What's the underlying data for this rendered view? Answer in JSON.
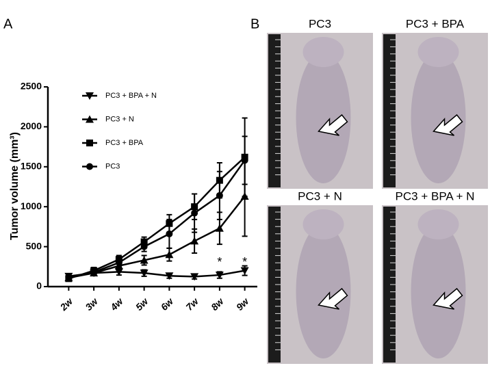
{
  "panel_labels": [
    "A",
    "B"
  ],
  "chart_data": {
    "type": "line",
    "y_label": "Tumor volume (mm³)",
    "categories": [
      "2w",
      "3w",
      "4w",
      "5w",
      "6w",
      "7w",
      "8w",
      "9w"
    ],
    "ylim": [
      0,
      2500
    ],
    "yticks": [
      0,
      500,
      1000,
      1500,
      2000,
      2500
    ],
    "series": [
      {
        "name": "PC3 + BPA + N",
        "color": "#000000",
        "marker": "triangle-down",
        "values": [
          130,
          170,
          185,
          170,
          135,
          125,
          145,
          200
        ],
        "errors": [
          30,
          30,
          40,
          40,
          30,
          30,
          40,
          60
        ]
      },
      {
        "name": "PC3 + N",
        "color": "#000000",
        "marker": "triangle-up",
        "values": [
          110,
          170,
          260,
          330,
          400,
          570,
          730,
          1130
        ],
        "errors": [
          30,
          30,
          40,
          60,
          80,
          150,
          200,
          500
        ]
      },
      {
        "name": "PC3 + BPA",
        "color": "#000000",
        "marker": "square",
        "values": [
          100,
          200,
          340,
          560,
          790,
          1000,
          1330,
          1620
        ],
        "errors": [
          30,
          40,
          50,
          60,
          110,
          160,
          220,
          490
        ]
      },
      {
        "name": "PC3",
        "color": "#000000",
        "marker": "circle",
        "values": [
          120,
          180,
          300,
          500,
          660,
          920,
          1140,
          1580
        ],
        "errors": [
          30,
          30,
          50,
          60,
          180,
          240,
          300,
          300
        ]
      }
    ],
    "annotations": [
      {
        "text": "*",
        "category": "8w"
      },
      {
        "text": "*",
        "category": "9w"
      }
    ]
  },
  "photos": [
    {
      "caption": "PC3"
    },
    {
      "caption": "PC3 + BPA"
    },
    {
      "caption": "PC3 + N"
    },
    {
      "caption": "PC3 + BPA + N"
    }
  ]
}
